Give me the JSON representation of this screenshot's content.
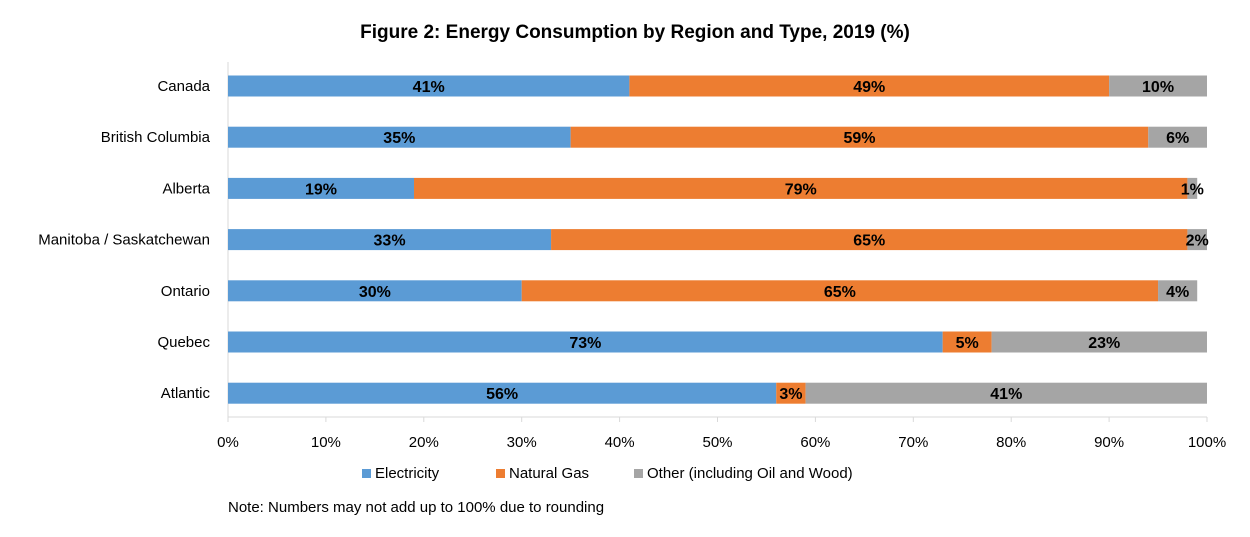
{
  "chart_data": {
    "type": "bar",
    "orientation": "horizontal",
    "stacked": "percent",
    "title": "Figure 2: Energy Consumption  by Region and Type, 2019 (%)",
    "categories": [
      "Canada",
      "British Columbia",
      "Alberta",
      "Manitoba / Saskatchewan",
      "Ontario",
      "Quebec",
      "Atlantic"
    ],
    "series": [
      {
        "name": "Electricity",
        "color": "#5B9BD5",
        "values": [
          41,
          35,
          19,
          33,
          30,
          73,
          56
        ],
        "labels": [
          "41%",
          "35%",
          "19%",
          "33%",
          "30%",
          "73%",
          "56%"
        ]
      },
      {
        "name": "Natural Gas",
        "color": "#ED7D31",
        "values": [
          49,
          59,
          79,
          65,
          65,
          5,
          3
        ],
        "labels": [
          "49%",
          "59%",
          "79%",
          "65%",
          "65%",
          "5%",
          "3%"
        ]
      },
      {
        "name": "Other (including Oil and Wood)",
        "color": "#A5A5A5",
        "values": [
          10,
          6,
          1,
          2,
          4,
          23,
          41
        ],
        "labels": [
          "10%",
          "6%",
          "1%",
          "2%",
          "4%",
          "23%",
          "41%"
        ]
      }
    ],
    "xlim": [
      0,
      100
    ],
    "x_ticks": [
      "0%",
      "10%",
      "20%",
      "30%",
      "40%",
      "50%",
      "60%",
      "70%",
      "80%",
      "90%",
      "100%"
    ],
    "grid": false,
    "legend_position": "bottom",
    "note": "Note: Numbers may not add up to 100% due to rounding"
  }
}
